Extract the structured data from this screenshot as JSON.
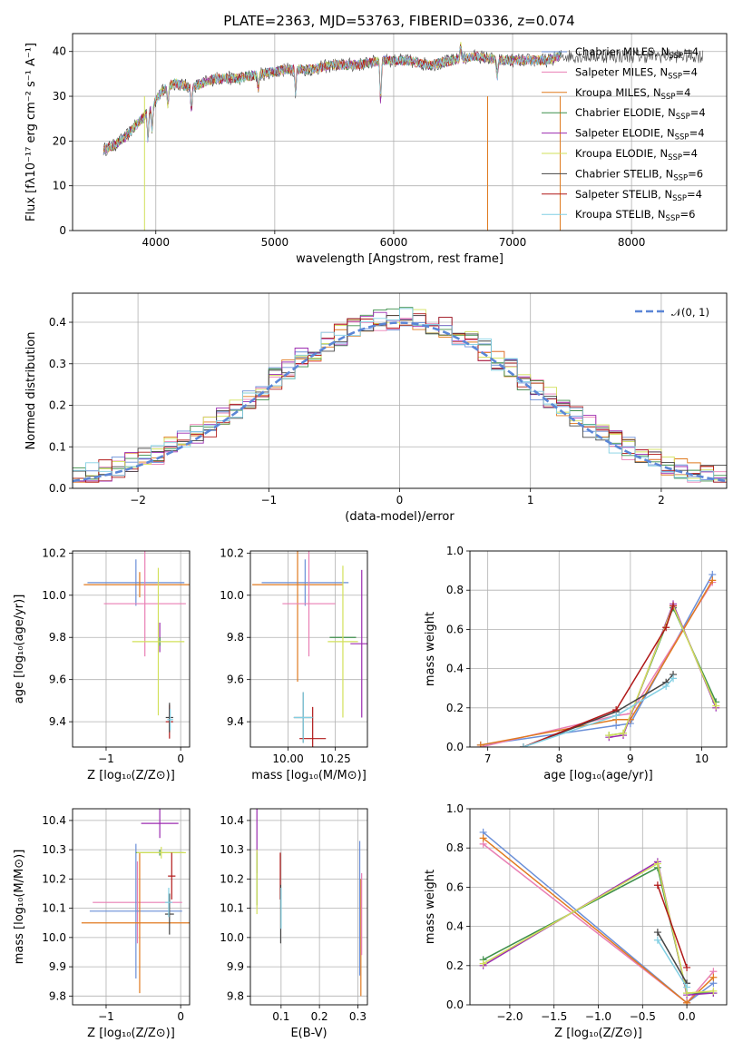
{
  "colors": {
    "Chabrier MILES": "#6a8fd8",
    "Salpeter MILES": "#e97fb4",
    "Kroupa MILES": "#e07a1f",
    "Chabrier ELODIE": "#3d8f4a",
    "Salpeter ELODIE": "#9b2bb0",
    "Kroupa ELODIE": "#d2e05a",
    "Chabrier STELIB": "#444444",
    "Salpeter STELIB": "#b01818",
    "Kroupa STELIB": "#82cfe3",
    "normal_curve": "#5b86d6"
  },
  "chart_data": [
    {
      "id": "spectrum",
      "type": "line",
      "title": "PLATE=2363, MJD=53763, FIBERID=0336, z=0.074",
      "xlabel": "wavelength [Angstrom, rest frame]",
      "ylabel": "Flux [fλ10⁻¹⁷ erg cm⁻² s⁻¹ A⁻¹]",
      "xlim": [
        3300,
        8800
      ],
      "ylim": [
        0,
        44
      ],
      "xticks": [
        4000,
        5000,
        6000,
        7000,
        8000
      ],
      "yticks": [
        0,
        10,
        20,
        30,
        40
      ],
      "legend_position": "top-right",
      "legend": [
        {
          "model": "Chabrier MILES",
          "n": "4"
        },
        {
          "model": "Salpeter MILES",
          "n": "4"
        },
        {
          "model": "Kroupa MILES",
          "n": "4"
        },
        {
          "model": "Chabrier ELODIE",
          "n": "4"
        },
        {
          "model": "Salpeter ELODIE",
          "n": "4"
        },
        {
          "model": "Kroupa ELODIE",
          "n": "4"
        },
        {
          "model": "Chabrier STELIB",
          "n": "6"
        },
        {
          "model": "Salpeter STELIB",
          "n": "4"
        },
        {
          "model": "Kroupa STELIB",
          "n": "6"
        }
      ],
      "legend_sub": "SSP",
      "legend_prefix": ", N",
      "continuum": {
        "x": [
          3550,
          3650,
          3750,
          3850,
          3950,
          4050,
          4150,
          4300,
          4500,
          4700,
          4900,
          5100,
          5300,
          5500,
          5700,
          5900,
          6100,
          6300,
          6500,
          6700,
          6900,
          7100,
          7300,
          7400
        ],
        "y": [
          18,
          19,
          21,
          24,
          27,
          31,
          33,
          32,
          34,
          34,
          35,
          36,
          36,
          37,
          37,
          38,
          38,
          37,
          38,
          39,
          38,
          38,
          38,
          39
        ]
      },
      "data_extent": [
        3550,
        8600
      ]
    },
    {
      "id": "residuals",
      "type": "histogram",
      "xlabel": "(data-model)/error",
      "ylabel": "Normed distribution",
      "xlim": [
        -2.5,
        2.5
      ],
      "ylim": [
        0,
        0.47
      ],
      "xticks": [
        -2,
        -1,
        0,
        1,
        2
      ],
      "xtick_labels": [
        "−2",
        "−1",
        "0",
        "1",
        "2"
      ],
      "yticks": [
        0.0,
        0.1,
        0.2,
        0.3,
        0.4
      ],
      "ytick_labels": [
        "0.0",
        "0.1",
        "0.2",
        "0.3",
        "0.4"
      ],
      "bins": 50,
      "legend_position": "top-right",
      "reference": "𝒩(0, 1)"
    },
    {
      "id": "age-vs-Z",
      "type": "errorbar",
      "xlabel": "Z [log₁₀(Z/Z⊙)]",
      "ylabel": "age  [log₁₀(age/yr)]",
      "xlim": [
        -1.45,
        0.12
      ],
      "ylim": [
        9.28,
        10.21
      ],
      "xticks": [
        -1,
        0
      ],
      "xtick_labels": [
        "−1",
        "0"
      ],
      "yticks": [
        9.4,
        9.6,
        9.8,
        10.0,
        10.2
      ],
      "ytick_labels": [
        "9.4",
        "9.6",
        "9.8",
        "10.0",
        "10.2"
      ],
      "points": [
        {
          "model": "Chabrier MILES",
          "x": -0.6,
          "xerr": 0.65,
          "y": 10.06,
          "yerr": 0.11
        },
        {
          "model": "Kroupa MILES",
          "x": -0.55,
          "xerr": 0.75,
          "y": 10.05,
          "yerr": 0.06
        },
        {
          "model": "Salpeter MILES",
          "x": -0.48,
          "xerr": 0.55,
          "y": 9.96,
          "yerr": 0.25
        },
        {
          "model": "Salpeter ELODIE",
          "x": -0.28,
          "xerr": 0.0,
          "y": 9.8,
          "yerr": 0.07
        },
        {
          "model": "Chabrier ELODIE",
          "x": -0.28,
          "xerr": 0.0,
          "y": 9.78,
          "yerr": 0.02
        },
        {
          "model": "Kroupa ELODIE",
          "x": -0.3,
          "xerr": 0.35,
          "y": 9.78,
          "yerr": 0.35
        },
        {
          "model": "Salpeter STELIB",
          "x": -0.15,
          "xerr": 0.05,
          "y": 9.4,
          "yerr": 0.08
        },
        {
          "model": "Chabrier STELIB",
          "x": -0.15,
          "xerr": 0.05,
          "y": 9.42,
          "yerr": 0.07
        },
        {
          "model": "Kroupa STELIB",
          "x": -0.14,
          "xerr": 0.04,
          "y": 9.41,
          "yerr": 0.05
        }
      ]
    },
    {
      "id": "age-vs-mass",
      "type": "errorbar",
      "xlabel": "mass [log₁₀(M/M⊙)]",
      "ylabel": "",
      "xlim": [
        9.8,
        10.42
      ],
      "ylim": [
        9.28,
        10.21
      ],
      "xticks": [
        10.0,
        10.25
      ],
      "xtick_labels": [
        "10.00",
        "10.25"
      ],
      "yticks": [
        9.4,
        9.6,
        9.8,
        10.0,
        10.2
      ],
      "ytick_labels": [
        "9.4",
        "9.6",
        "9.8",
        "10.0",
        "10.2"
      ],
      "points": [
        {
          "model": "Chabrier MILES",
          "x": 10.09,
          "xerr": 0.23,
          "y": 10.06,
          "yerr": 0.11
        },
        {
          "model": "Kroupa MILES",
          "x": 10.05,
          "xerr": 0.24,
          "y": 10.05,
          "yerr": 0.46
        },
        {
          "model": "Salpeter MILES",
          "x": 10.11,
          "xerr": 0.14,
          "y": 9.96,
          "yerr": 0.25
        },
        {
          "model": "Salpeter ELODIE",
          "x": 10.39,
          "xerr": 0.06,
          "y": 9.77,
          "yerr": 0.35
        },
        {
          "model": "Chabrier ELODIE",
          "x": 10.29,
          "xerr": 0.07,
          "y": 9.8,
          "yerr": 0.0
        },
        {
          "model": "Kroupa ELODIE",
          "x": 10.29,
          "xerr": 0.08,
          "y": 9.78,
          "yerr": 0.36
        },
        {
          "model": "Salpeter STELIB",
          "x": 10.13,
          "xerr": 0.07,
          "y": 9.32,
          "yerr": 0.15
        },
        {
          "model": "Chabrier STELIB",
          "x": 10.08,
          "xerr": 0.05,
          "y": 9.42,
          "yerr": 0.12
        },
        {
          "model": "Kroupa STELIB",
          "x": 10.08,
          "xerr": 0.05,
          "y": 9.42,
          "yerr": 0.12
        }
      ]
    },
    {
      "id": "weight-vs-age",
      "type": "line",
      "xlabel": "age  [log₁₀(age/yr)]",
      "ylabel": "mass weight",
      "xlim": [
        6.75,
        10.35
      ],
      "ylim": [
        0,
        1
      ],
      "xticks": [
        7,
        8,
        9,
        10
      ],
      "xtick_labels": [
        "7",
        "8",
        "9",
        "10"
      ],
      "yticks": [
        0,
        0.2,
        0.4,
        0.6,
        0.8,
        1.0
      ],
      "ytick_labels": [
        "0.0",
        "0.2",
        "0.4",
        "0.6",
        "0.8",
        "1.0"
      ],
      "series": [
        {
          "model": "Chabrier MILES",
          "x": [
            6.9,
            8.8,
            9.0,
            10.15
          ],
          "y": [
            0.01,
            0.11,
            0.12,
            0.88
          ]
        },
        {
          "model": "Salpeter MILES",
          "x": [
            6.9,
            8.8,
            9.0,
            10.15
          ],
          "y": [
            0.0,
            0.16,
            0.17,
            0.84
          ]
        },
        {
          "model": "Kroupa MILES",
          "x": [
            6.9,
            8.8,
            9.0,
            10.15
          ],
          "y": [
            0.01,
            0.14,
            0.14,
            0.85
          ]
        },
        {
          "model": "Chabrier ELODIE",
          "x": [
            8.7,
            8.9,
            9.6,
            10.2
          ],
          "y": [
            0.06,
            0.07,
            0.71,
            0.23
          ]
        },
        {
          "model": "Salpeter ELODIE",
          "x": [
            8.7,
            8.9,
            9.6,
            10.2
          ],
          "y": [
            0.05,
            0.06,
            0.73,
            0.2
          ]
        },
        {
          "model": "Kroupa ELODIE",
          "x": [
            8.7,
            8.9,
            9.6,
            10.2
          ],
          "y": [
            0.06,
            0.07,
            0.72,
            0.21
          ]
        },
        {
          "model": "Chabrier STELIB",
          "x": [
            7.5,
            8.8,
            9.5,
            9.6
          ],
          "y": [
            0.0,
            0.18,
            0.33,
            0.37
          ]
        },
        {
          "model": "Salpeter STELIB",
          "x": [
            7.5,
            8.8,
            9.5,
            9.6
          ],
          "y": [
            0.0,
            0.19,
            0.61,
            0.72
          ]
        },
        {
          "model": "Kroupa STELIB",
          "x": [
            7.5,
            8.8,
            9.5,
            9.6
          ],
          "y": [
            0.0,
            0.16,
            0.31,
            0.35
          ]
        }
      ]
    },
    {
      "id": "mass-vs-Z",
      "type": "errorbar",
      "xlabel": "Z [log₁₀(Z/Z⊙)]",
      "ylabel": "mass [log₁₀(M/M⊙)]",
      "xlim": [
        -1.45,
        0.12
      ],
      "ylim": [
        9.77,
        10.44
      ],
      "xticks": [
        -1,
        0
      ],
      "xtick_labels": [
        "−1",
        "0"
      ],
      "yticks": [
        9.8,
        9.9,
        10.0,
        10.1,
        10.2,
        10.3,
        10.4
      ],
      "ytick_labels": [
        "9.8",
        "9.9",
        "10.0",
        "10.1",
        "10.2",
        "10.3",
        "10.4"
      ],
      "points": [
        {
          "model": "Salpeter MILES",
          "x": -0.58,
          "xerr": 0.6,
          "y": 10.12,
          "yerr": 0.14
        },
        {
          "model": "Chabrier MILES",
          "x": -0.6,
          "xerr": 0.62,
          "y": 10.09,
          "yerr": 0.23
        },
        {
          "model": "Kroupa MILES",
          "x": -0.55,
          "xerr": 0.78,
          "y": 10.05,
          "yerr": 0.24
        },
        {
          "model": "Salpeter ELODIE",
          "x": -0.28,
          "xerr": 0.25,
          "y": 10.39,
          "yerr": 0.05
        },
        {
          "model": "Chabrier ELODIE",
          "x": -0.28,
          "xerr": 0.32,
          "y": 10.29,
          "yerr": 0.01
        },
        {
          "model": "Kroupa ELODIE",
          "x": -0.26,
          "xerr": 0.33,
          "y": 10.29,
          "yerr": 0.02
        },
        {
          "model": "Salpeter STELIB",
          "x": -0.12,
          "xerr": 0.05,
          "y": 10.21,
          "yerr": 0.08
        },
        {
          "model": "Chabrier STELIB",
          "x": -0.15,
          "xerr": 0.06,
          "y": 10.08,
          "yerr": 0.07
        },
        {
          "model": "Kroupa STELIB",
          "x": -0.16,
          "xerr": 0.05,
          "y": 10.12,
          "yerr": 0.05
        }
      ]
    },
    {
      "id": "mass-vs-EBV",
      "type": "errorbar",
      "xlabel": "E(B-V)",
      "ylabel": "",
      "xlim": [
        0.02,
        0.325
      ],
      "ylim": [
        9.77,
        10.44
      ],
      "xticks": [
        0.1,
        0.2,
        0.3
      ],
      "xtick_labels": [
        "0.1",
        "0.2",
        "0.3"
      ],
      "yticks": [
        9.8,
        9.9,
        10.0,
        10.1,
        10.2,
        10.3,
        10.4
      ],
      "ytick_labels": [
        "9.8",
        "9.9",
        "10.0",
        "10.1",
        "10.2",
        "10.3",
        "10.4"
      ],
      "points": [
        {
          "model": "Salpeter ELODIE",
          "x": 0.037,
          "xerr": 0,
          "y": 10.33,
          "yerr": 0.11
        },
        {
          "model": "Chabrier ELODIE",
          "x": 0.037,
          "xerr": 0,
          "y": 10.2,
          "yerr": 0.09
        },
        {
          "model": "Kroupa ELODIE",
          "x": 0.037,
          "xerr": 0,
          "y": 10.19,
          "yerr": 0.11
        },
        {
          "model": "Salpeter STELIB",
          "x": 0.098,
          "xerr": 0,
          "y": 10.21,
          "yerr": 0.08
        },
        {
          "model": "Chabrier STELIB",
          "x": 0.099,
          "xerr": 0,
          "y": 10.08,
          "yerr": 0.1
        },
        {
          "model": "Kroupa STELIB",
          "x": 0.1,
          "xerr": 0,
          "y": 10.1,
          "yerr": 0.07
        },
        {
          "model": "Chabrier MILES",
          "x": 0.305,
          "xerr": 0,
          "y": 10.1,
          "yerr": 0.23
        },
        {
          "model": "Kroupa MILES",
          "x": 0.308,
          "xerr": 0,
          "y": 10.0,
          "yerr": 0.2
        },
        {
          "model": "Salpeter MILES",
          "x": 0.31,
          "xerr": 0,
          "y": 10.08,
          "yerr": 0.14
        }
      ]
    },
    {
      "id": "weight-vs-Z",
      "type": "line",
      "xlabel": "Z [log₁₀(Z/Z⊙)]",
      "ylabel": "mass weight",
      "xlim": [
        -2.45,
        0.45
      ],
      "ylim": [
        0,
        1
      ],
      "xticks": [
        -2.0,
        -1.5,
        -1.0,
        -0.5,
        0.0
      ],
      "xtick_labels": [
        "−2.0",
        "−1.5",
        "−1.0",
        "−0.5",
        "0.0"
      ],
      "yticks": [
        0,
        0.2,
        0.4,
        0.6,
        0.8,
        1.0
      ],
      "ytick_labels": [
        "0.0",
        "0.2",
        "0.4",
        "0.6",
        "0.8",
        "1.0"
      ],
      "series": [
        {
          "model": "Chabrier MILES",
          "x": [
            -2.3,
            0.0,
            0.3
          ],
          "y": [
            0.88,
            0.01,
            0.11
          ]
        },
        {
          "model": "Salpeter MILES",
          "x": [
            -2.3,
            0.0,
            0.3
          ],
          "y": [
            0.82,
            0.01,
            0.17
          ]
        },
        {
          "model": "Kroupa MILES",
          "x": [
            -2.3,
            0.0,
            0.3
          ],
          "y": [
            0.85,
            0.01,
            0.14
          ]
        },
        {
          "model": "Chabrier ELODIE",
          "x": [
            -2.3,
            -0.33,
            0.0,
            0.3
          ],
          "y": [
            0.23,
            0.7,
            0.06,
            0.06
          ]
        },
        {
          "model": "Salpeter ELODIE",
          "x": [
            -2.3,
            -0.33,
            0.0,
            0.3
          ],
          "y": [
            0.2,
            0.73,
            0.05,
            0.06
          ]
        },
        {
          "model": "Kroupa ELODIE",
          "x": [
            -2.3,
            -0.33,
            0.0,
            0.3
          ],
          "y": [
            0.21,
            0.72,
            0.06,
            0.07
          ]
        },
        {
          "model": "Chabrier STELIB",
          "x": [
            -0.33,
            0.0
          ],
          "y": [
            0.37,
            0.11
          ]
        },
        {
          "model": "Salpeter STELIB",
          "x": [
            -0.33,
            0.0
          ],
          "y": [
            0.61,
            0.19
          ]
        },
        {
          "model": "Kroupa STELIB",
          "x": [
            -0.33,
            0.0
          ],
          "y": [
            0.33,
            0.09
          ]
        }
      ]
    }
  ]
}
